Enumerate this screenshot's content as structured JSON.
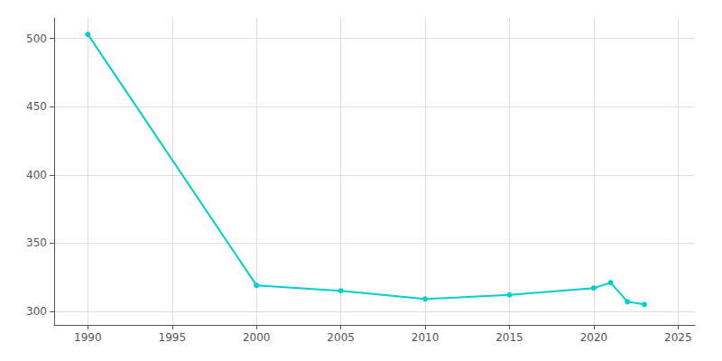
{
  "chart_data": {
    "type": "line",
    "x": [
      1990,
      2000,
      2005,
      2010,
      2015,
      2020,
      2021,
      2022,
      2023
    ],
    "values": [
      503,
      319,
      315,
      309,
      312,
      317,
      321,
      307,
      305
    ],
    "color": "#00CED1",
    "marker": "circle",
    "xlim": [
      1988,
      2026
    ],
    "ylim": [
      290,
      515
    ],
    "xticks": [
      1990,
      1995,
      2000,
      2005,
      2010,
      2015,
      2020,
      2025
    ],
    "yticks": [
      300,
      350,
      400,
      450,
      500
    ],
    "grid": true
  }
}
